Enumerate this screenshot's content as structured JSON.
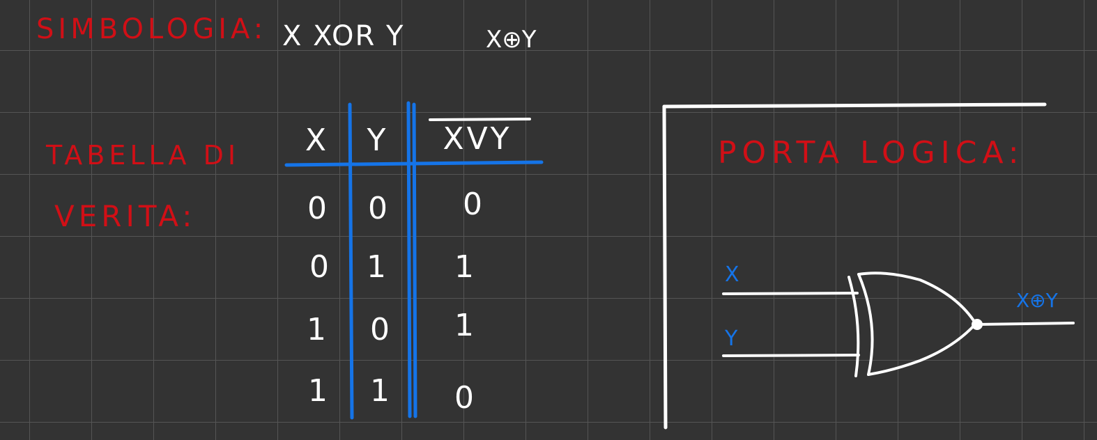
{
  "colors": {
    "background": "#333333",
    "grid": "#555555",
    "red_ink": "#d10f16",
    "white_ink": "#ffffff",
    "blue_ink": "#1574e8"
  },
  "symbology": {
    "label": "SIMBOLOGIA:",
    "expr_word": "X XOR Y",
    "expr_symbol": "X⊕Y"
  },
  "truth_table": {
    "label_line1": "TABELLA DI",
    "label_line2": "VERITA:",
    "headers": [
      "X",
      "Y",
      "XVY"
    ],
    "rows": [
      [
        "0",
        "0",
        "0"
      ],
      [
        "0",
        "1",
        "1"
      ],
      [
        "1",
        "0",
        "1"
      ],
      [
        "1",
        "1",
        "0"
      ]
    ]
  },
  "logic_gate": {
    "label": "PORTA LOGICA:",
    "input_a": "X",
    "input_b": "Y",
    "output": "X⊕Y"
  }
}
